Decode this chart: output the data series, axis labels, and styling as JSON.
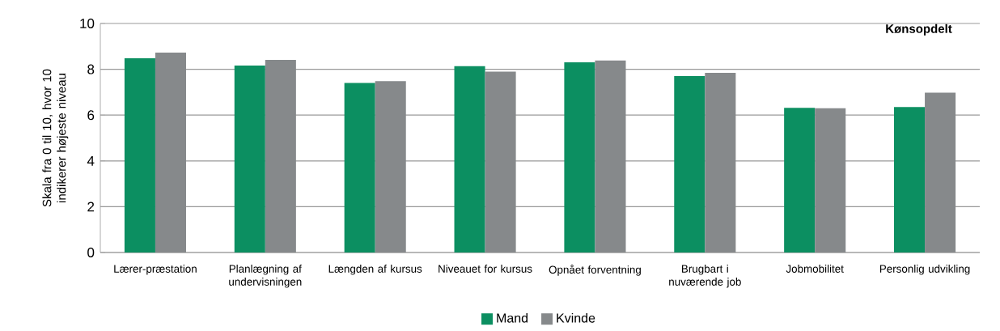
{
  "chart_data": {
    "type": "bar",
    "title": "Kønsopdelt",
    "ylabel": "Skala fra 0  til 10, hvor 10 indikerer højeste niveau",
    "categories": [
      "Lærer-præstation",
      "Planlægning af undervisningen",
      "Længden af kursus",
      "Niveauet for kursus",
      "Opnået forventning",
      "Brugbart i nuværende job",
      "Jobmobilitet",
      "Personlig udvikling"
    ],
    "series": [
      {
        "name": "Mand",
        "color": "#0c8f61",
        "values": [
          8.48,
          8.16,
          7.4,
          8.14,
          8.3,
          7.7,
          6.32,
          6.35
        ]
      },
      {
        "name": "Kvinde",
        "color": "#86898b",
        "values": [
          8.73,
          8.41,
          7.48,
          7.9,
          8.38,
          7.84,
          6.3,
          6.98
        ]
      }
    ],
    "ylim": [
      0,
      10
    ],
    "yticks": [
      0,
      2,
      4,
      6,
      8,
      10
    ],
    "grid": "y",
    "legend": "bottom"
  }
}
